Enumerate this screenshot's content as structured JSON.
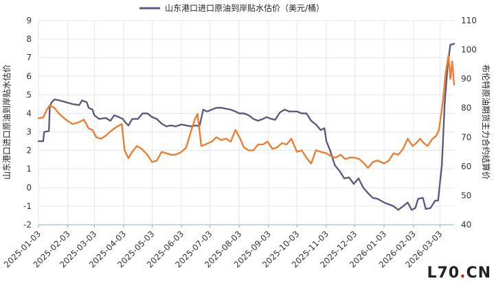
{
  "watermark": {
    "part1": "L70",
    "dot": ".",
    "part2": "CN"
  },
  "chart_data": {
    "type": "line",
    "ylabel_left": "山东港口进口原油到岸贴水估价",
    "ylabel_right": "布伦特原油期货主力合约结算价",
    "ylim_left": [
      -2,
      9
    ],
    "ylim_right": [
      40,
      110
    ],
    "yticks_left": [
      "-2",
      "-1",
      "0",
      "1",
      "2",
      "3",
      "4",
      "5",
      "6",
      "7",
      "8",
      "9"
    ],
    "yticks_right": [
      "40",
      "50",
      "60",
      "70",
      "80",
      "90",
      "100",
      "110"
    ],
    "xticks": [
      "2025-01-03",
      "2025-02-03",
      "2025-03-03",
      "2025-04-03",
      "2025-05-03",
      "2025-06-03",
      "2025-07-03",
      "2025-08-03",
      "2025-09-03",
      "2025-10-03",
      "2025-11-03",
      "2025-12-03",
      "2026-01-03",
      "2026-02-03",
      "2026-03-03"
    ],
    "x_start": "2025-01-03",
    "x_end": "2026-03-18",
    "grid": true,
    "legend_position": "top-center",
    "series": [
      {
        "name": "山东港口进口原油到岸贴水估价（美元/桶）",
        "axis": "left",
        "color": "#5b5b7e",
        "points": [
          [
            "2025-01-03",
            2.5
          ],
          [
            "2025-01-08",
            2.5
          ],
          [
            "2025-01-09",
            3.0
          ],
          [
            "2025-01-14",
            3.05
          ],
          [
            "2025-01-15",
            4.4
          ],
          [
            "2025-01-17",
            4.6
          ],
          [
            "2025-01-20",
            4.75
          ],
          [
            "2025-01-25",
            4.7
          ],
          [
            "2025-02-01",
            4.6
          ],
          [
            "2025-02-08",
            4.5
          ],
          [
            "2025-02-15",
            4.45
          ],
          [
            "2025-02-18",
            4.7
          ],
          [
            "2025-02-23",
            4.6
          ],
          [
            "2025-02-25",
            4.3
          ],
          [
            "2025-03-01",
            4.2
          ],
          [
            "2025-03-03",
            3.9
          ],
          [
            "2025-03-08",
            3.7
          ],
          [
            "2025-03-15",
            3.75
          ],
          [
            "2025-03-20",
            3.6
          ],
          [
            "2025-03-24",
            3.9
          ],
          [
            "2025-03-29",
            3.8
          ],
          [
            "2025-04-02",
            3.7
          ],
          [
            "2025-04-05",
            3.5
          ],
          [
            "2025-04-08",
            3.35
          ],
          [
            "2025-04-12",
            3.7
          ],
          [
            "2025-04-18",
            3.7
          ],
          [
            "2025-04-23",
            4.0
          ],
          [
            "2025-04-28",
            4.0
          ],
          [
            "2025-05-03",
            3.8
          ],
          [
            "2025-05-08",
            3.7
          ],
          [
            "2025-05-13",
            3.45
          ],
          [
            "2025-05-18",
            3.3
          ],
          [
            "2025-05-23",
            3.35
          ],
          [
            "2025-05-28",
            3.3
          ],
          [
            "2025-06-03",
            3.4
          ],
          [
            "2025-06-08",
            3.35
          ],
          [
            "2025-06-13",
            3.3
          ],
          [
            "2025-06-18",
            3.35
          ],
          [
            "2025-06-22",
            3.3
          ],
          [
            "2025-06-26",
            4.2
          ],
          [
            "2025-06-30",
            4.1
          ],
          [
            "2025-07-05",
            4.2
          ],
          [
            "2025-07-10",
            4.3
          ],
          [
            "2025-07-15",
            4.3
          ],
          [
            "2025-07-20",
            4.25
          ],
          [
            "2025-07-25",
            4.2
          ],
          [
            "2025-07-30",
            4.1
          ],
          [
            "2025-08-03",
            4.0
          ],
          [
            "2025-08-08",
            4.0
          ],
          [
            "2025-08-13",
            3.9
          ],
          [
            "2025-08-18",
            3.7
          ],
          [
            "2025-08-23",
            3.6
          ],
          [
            "2025-08-28",
            3.7
          ],
          [
            "2025-09-01",
            3.8
          ],
          [
            "2025-09-06",
            3.7
          ],
          [
            "2025-09-10",
            3.65
          ],
          [
            "2025-09-15",
            4.05
          ],
          [
            "2025-09-20",
            4.2
          ],
          [
            "2025-09-25",
            4.1
          ],
          [
            "2025-10-03",
            4.1
          ],
          [
            "2025-10-08",
            4.0
          ],
          [
            "2025-10-13",
            4.0
          ],
          [
            "2025-10-18",
            3.6
          ],
          [
            "2025-10-23",
            3.4
          ],
          [
            "2025-10-28",
            3.1
          ],
          [
            "2025-11-01",
            3.2
          ],
          [
            "2025-11-03",
            2.5
          ],
          [
            "2025-11-07",
            2.0
          ],
          [
            "2025-11-12",
            1.2
          ],
          [
            "2025-11-17",
            0.9
          ],
          [
            "2025-11-22",
            0.5
          ],
          [
            "2025-11-27",
            0.55
          ],
          [
            "2025-12-02",
            0.2
          ],
          [
            "2025-12-07",
            0.5
          ],
          [
            "2025-12-12",
            0.0
          ],
          [
            "2025-12-17",
            -0.3
          ],
          [
            "2025-12-22",
            -0.55
          ],
          [
            "2025-12-27",
            -0.6
          ],
          [
            "2026-01-03",
            -0.8
          ],
          [
            "2026-01-08",
            -0.9
          ],
          [
            "2026-01-13",
            -1.0
          ],
          [
            "2026-01-18",
            -1.2
          ],
          [
            "2026-01-23",
            -1.0
          ],
          [
            "2026-01-28",
            -0.8
          ],
          [
            "2026-02-01",
            -1.2
          ],
          [
            "2026-02-05",
            -1.1
          ],
          [
            "2026-02-08",
            -0.6
          ],
          [
            "2026-02-13",
            -0.55
          ],
          [
            "2026-02-16",
            -1.15
          ],
          [
            "2026-02-21",
            -1.1
          ],
          [
            "2026-02-26",
            -0.7
          ],
          [
            "2026-03-01",
            -0.7
          ],
          [
            "2026-03-05",
            1.2
          ],
          [
            "2026-03-08",
            4.5
          ],
          [
            "2026-03-11",
            6.5
          ],
          [
            "2026-03-14",
            7.7
          ],
          [
            "2026-03-18",
            7.75
          ]
        ]
      },
      {
        "axis": "right",
        "color": "#ed7d31",
        "points": [
          [
            "2025-01-03",
            76.5
          ],
          [
            "2025-01-08",
            76.8
          ],
          [
            "2025-01-12",
            79.5
          ],
          [
            "2025-01-15",
            81.0
          ],
          [
            "2025-01-20",
            80.0
          ],
          [
            "2025-01-25",
            78.0
          ],
          [
            "2025-02-01",
            76.0
          ],
          [
            "2025-02-08",
            74.5
          ],
          [
            "2025-02-15",
            75.2
          ],
          [
            "2025-02-20",
            76.0
          ],
          [
            "2025-02-25",
            73.0
          ],
          [
            "2025-03-01",
            72.5
          ],
          [
            "2025-03-05",
            70.0
          ],
          [
            "2025-03-10",
            69.5
          ],
          [
            "2025-03-15",
            70.5
          ],
          [
            "2025-03-20",
            72.0
          ],
          [
            "2025-03-26",
            73.5
          ],
          [
            "2025-04-01",
            74.5
          ],
          [
            "2025-04-04",
            65.5
          ],
          [
            "2025-04-08",
            62.8
          ],
          [
            "2025-04-12",
            65.0
          ],
          [
            "2025-04-17",
            67.0
          ],
          [
            "2025-04-22",
            66.0
          ],
          [
            "2025-04-28",
            64.0
          ],
          [
            "2025-05-03",
            61.5
          ],
          [
            "2025-05-08",
            62.0
          ],
          [
            "2025-05-13",
            65.0
          ],
          [
            "2025-05-18",
            64.5
          ],
          [
            "2025-05-23",
            64.0
          ],
          [
            "2025-05-28",
            64.0
          ],
          [
            "2025-06-03",
            65.0
          ],
          [
            "2025-06-08",
            66.5
          ],
          [
            "2025-06-13",
            72.0
          ],
          [
            "2025-06-17",
            76.0
          ],
          [
            "2025-06-20",
            78.0
          ],
          [
            "2025-06-24",
            67.0
          ],
          [
            "2025-06-28",
            67.5
          ],
          [
            "2025-07-05",
            68.5
          ],
          [
            "2025-07-10",
            70.0
          ],
          [
            "2025-07-15",
            69.0
          ],
          [
            "2025-07-20",
            69.5
          ],
          [
            "2025-07-25",
            68.5
          ],
          [
            "2025-07-30",
            72.5
          ],
          [
            "2025-08-04",
            69.5
          ],
          [
            "2025-08-08",
            66.5
          ],
          [
            "2025-08-13",
            65.5
          ],
          [
            "2025-08-18",
            65.5
          ],
          [
            "2025-08-23",
            67.5
          ],
          [
            "2025-08-28",
            67.5
          ],
          [
            "2025-09-02",
            68.5
          ],
          [
            "2025-09-07",
            66.0
          ],
          [
            "2025-09-12",
            66.5
          ],
          [
            "2025-09-17",
            68.0
          ],
          [
            "2025-09-22",
            67.5
          ],
          [
            "2025-09-27",
            69.5
          ],
          [
            "2025-10-03",
            65.0
          ],
          [
            "2025-10-08",
            65.5
          ],
          [
            "2025-10-13",
            63.0
          ],
          [
            "2025-10-18",
            61.0
          ],
          [
            "2025-10-23",
            65.5
          ],
          [
            "2025-10-28",
            65.0
          ],
          [
            "2025-11-03",
            64.5
          ],
          [
            "2025-11-08",
            63.5
          ],
          [
            "2025-11-13",
            63.0
          ],
          [
            "2025-11-18",
            64.0
          ],
          [
            "2025-11-23",
            62.5
          ],
          [
            "2025-11-28",
            63.0
          ],
          [
            "2025-12-03",
            63.0
          ],
          [
            "2025-12-08",
            62.5
          ],
          [
            "2025-12-13",
            61.0
          ],
          [
            "2025-12-17",
            59.5
          ],
          [
            "2025-12-22",
            61.5
          ],
          [
            "2025-12-27",
            62.0
          ],
          [
            "2026-01-03",
            61.0
          ],
          [
            "2026-01-08",
            62.0
          ],
          [
            "2026-01-13",
            64.5
          ],
          [
            "2026-01-18",
            64.0
          ],
          [
            "2026-01-23",
            66.0
          ],
          [
            "2026-01-28",
            69.5
          ],
          [
            "2026-02-02",
            67.0
          ],
          [
            "2026-02-06",
            68.0
          ],
          [
            "2026-02-10",
            69.5
          ],
          [
            "2026-02-14",
            68.0
          ],
          [
            "2026-02-18",
            67.0
          ],
          [
            "2026-02-22",
            69.0
          ],
          [
            "2026-02-27",
            70.5
          ],
          [
            "2026-03-02",
            72.5
          ],
          [
            "2026-03-06",
            82.0
          ],
          [
            "2026-03-09",
            92.0
          ],
          [
            "2026-03-12",
            98.0
          ],
          [
            "2026-03-14",
            90.0
          ],
          [
            "2026-03-16",
            96.0
          ],
          [
            "2026-03-18",
            88.0
          ]
        ]
      }
    ]
  }
}
